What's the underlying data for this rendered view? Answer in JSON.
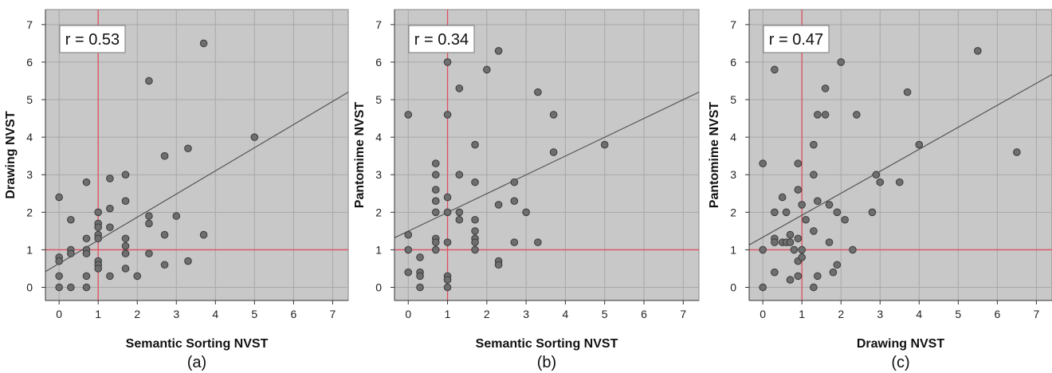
{
  "chart_data": [
    {
      "type": "scatter",
      "caption": "(a)",
      "annotation": "r = 0.53",
      "xlabel": "Semantic Sorting NVST",
      "ylabel": "Drawing NVST",
      "xlim": [
        -0.35,
        7.4
      ],
      "ylim": [
        -0.35,
        7.4
      ],
      "xticks": [
        0,
        1,
        2,
        3,
        4,
        5,
        6,
        7
      ],
      "yticks": [
        0,
        1,
        2,
        3,
        4,
        5,
        6,
        7
      ],
      "grid": true,
      "reference_lines": {
        "x": 1,
        "y": 1
      },
      "fit_line": {
        "x0": -0.35,
        "y0": 0.42,
        "x1": 7.4,
        "y1": 5.2
      },
      "colors": {
        "background": "#c8c8c8",
        "point": "#6e6e6e",
        "reference": "#e05060",
        "fit": "#555555"
      },
      "points": [
        {
          "x": 0,
          "y": 2.4
        },
        {
          "x": 0,
          "y": 0.8
        },
        {
          "x": 0,
          "y": 0.7
        },
        {
          "x": 0,
          "y": 0.3
        },
        {
          "x": 0,
          "y": 0
        },
        {
          "x": 0.3,
          "y": 1.8
        },
        {
          "x": 0.3,
          "y": 1.0
        },
        {
          "x": 0.3,
          "y": 0.9
        },
        {
          "x": 0.3,
          "y": 0
        },
        {
          "x": 0.7,
          "y": 2.8
        },
        {
          "x": 0.7,
          "y": 1.3
        },
        {
          "x": 0.7,
          "y": 1.0
        },
        {
          "x": 0.7,
          "y": 0.9
        },
        {
          "x": 0.7,
          "y": 0.3
        },
        {
          "x": 0.7,
          "y": 0
        },
        {
          "x": 1,
          "y": 2.0
        },
        {
          "x": 1,
          "y": 1.7
        },
        {
          "x": 1,
          "y": 1.6
        },
        {
          "x": 1,
          "y": 1.4
        },
        {
          "x": 1,
          "y": 1.3
        },
        {
          "x": 1,
          "y": 0.7
        },
        {
          "x": 1,
          "y": 0.6
        },
        {
          "x": 1,
          "y": 0.5
        },
        {
          "x": 1.3,
          "y": 2.9
        },
        {
          "x": 1.3,
          "y": 2.1
        },
        {
          "x": 1.3,
          "y": 1.6
        },
        {
          "x": 1.3,
          "y": 0.3
        },
        {
          "x": 1.7,
          "y": 3.0
        },
        {
          "x": 1.7,
          "y": 2.3
        },
        {
          "x": 1.7,
          "y": 1.3
        },
        {
          "x": 1.7,
          "y": 1.1
        },
        {
          "x": 1.7,
          "y": 0.9
        },
        {
          "x": 1.7,
          "y": 0.5
        },
        {
          "x": 2.0,
          "y": 0.3
        },
        {
          "x": 2.3,
          "y": 5.5
        },
        {
          "x": 2.3,
          "y": 1.9
        },
        {
          "x": 2.3,
          "y": 1.7
        },
        {
          "x": 2.3,
          "y": 0.9
        },
        {
          "x": 2.7,
          "y": 3.5
        },
        {
          "x": 2.7,
          "y": 1.4
        },
        {
          "x": 2.7,
          "y": 0.6
        },
        {
          "x": 3.0,
          "y": 1.9
        },
        {
          "x": 3.3,
          "y": 3.7
        },
        {
          "x": 3.3,
          "y": 0.7
        },
        {
          "x": 3.7,
          "y": 6.5
        },
        {
          "x": 3.7,
          "y": 1.4
        },
        {
          "x": 5.0,
          "y": 4.0
        }
      ]
    },
    {
      "type": "scatter",
      "caption": "(b)",
      "annotation": "r = 0.34",
      "xlabel": "Semantic Sorting NVST",
      "ylabel": "Pantomime NVST",
      "xlim": [
        -0.35,
        7.4
      ],
      "ylim": [
        -0.35,
        7.4
      ],
      "xticks": [
        0,
        1,
        2,
        3,
        4,
        5,
        6,
        7
      ],
      "yticks": [
        0,
        1,
        2,
        3,
        4,
        5,
        6,
        7
      ],
      "grid": true,
      "reference_lines": {
        "x": 1,
        "y": 1
      },
      "fit_line": {
        "x0": -0.35,
        "y0": 1.32,
        "x1": 7.4,
        "y1": 5.2
      },
      "colors": {
        "background": "#c8c8c8",
        "point": "#6e6e6e",
        "reference": "#e05060",
        "fit": "#555555"
      },
      "points": [
        {
          "x": 0,
          "y": 4.6
        },
        {
          "x": 0,
          "y": 1.4
        },
        {
          "x": 0,
          "y": 1.0
        },
        {
          "x": 0,
          "y": 0.4
        },
        {
          "x": 0.3,
          "y": 0.8
        },
        {
          "x": 0.3,
          "y": 0.4
        },
        {
          "x": 0.3,
          "y": 0.3
        },
        {
          "x": 0.3,
          "y": 0
        },
        {
          "x": 0.7,
          "y": 3.3
        },
        {
          "x": 0.7,
          "y": 3.0
        },
        {
          "x": 0.7,
          "y": 2.6
        },
        {
          "x": 0.7,
          "y": 2.3
        },
        {
          "x": 0.7,
          "y": 2.0
        },
        {
          "x": 0.7,
          "y": 1.3
        },
        {
          "x": 0.7,
          "y": 1.2
        },
        {
          "x": 0.7,
          "y": 1.0
        },
        {
          "x": 1,
          "y": 6.0
        },
        {
          "x": 1,
          "y": 4.6
        },
        {
          "x": 1,
          "y": 2.4
        },
        {
          "x": 1,
          "y": 2.0
        },
        {
          "x": 1,
          "y": 1.2
        },
        {
          "x": 1,
          "y": 0.3
        },
        {
          "x": 1,
          "y": 0.2
        },
        {
          "x": 1,
          "y": 0
        },
        {
          "x": 1.3,
          "y": 5.3
        },
        {
          "x": 1.3,
          "y": 3.0
        },
        {
          "x": 1.3,
          "y": 2.0
        },
        {
          "x": 1.3,
          "y": 1.8
        },
        {
          "x": 1.7,
          "y": 3.8
        },
        {
          "x": 1.7,
          "y": 2.8
        },
        {
          "x": 1.7,
          "y": 1.8
        },
        {
          "x": 1.7,
          "y": 1.5
        },
        {
          "x": 1.7,
          "y": 1.3
        },
        {
          "x": 1.7,
          "y": 1.2
        },
        {
          "x": 1.7,
          "y": 1.0
        },
        {
          "x": 2.0,
          "y": 5.8
        },
        {
          "x": 2.3,
          "y": 6.3
        },
        {
          "x": 2.3,
          "y": 2.2
        },
        {
          "x": 2.3,
          "y": 0.7
        },
        {
          "x": 2.3,
          "y": 0.6
        },
        {
          "x": 2.7,
          "y": 2.8
        },
        {
          "x": 2.7,
          "y": 2.3
        },
        {
          "x": 2.7,
          "y": 1.2
        },
        {
          "x": 3.0,
          "y": 2.0
        },
        {
          "x": 3.3,
          "y": 5.2
        },
        {
          "x": 3.3,
          "y": 1.2
        },
        {
          "x": 3.7,
          "y": 4.6
        },
        {
          "x": 3.7,
          "y": 3.6
        },
        {
          "x": 5.0,
          "y": 3.8
        }
      ]
    },
    {
      "type": "scatter",
      "caption": "(c)",
      "annotation": "r = 0.47",
      "xlabel": "Drawing NVST",
      "ylabel": "Pantomime NVST",
      "xlim": [
        -0.35,
        7.4
      ],
      "ylim": [
        -0.35,
        7.4
      ],
      "xticks": [
        0,
        1,
        2,
        3,
        4,
        5,
        6,
        7
      ],
      "yticks": [
        0,
        1,
        2,
        3,
        4,
        5,
        6,
        7
      ],
      "grid": true,
      "reference_lines": {
        "x": 1,
        "y": 1
      },
      "fit_line": {
        "x0": -0.35,
        "y0": 1.13,
        "x1": 7.4,
        "y1": 5.67
      },
      "colors": {
        "background": "#c8c8c8",
        "point": "#6e6e6e",
        "reference": "#e05060",
        "fit": "#555555"
      },
      "points": [
        {
          "x": 0,
          "y": 3.3
        },
        {
          "x": 0,
          "y": 1.0
        },
        {
          "x": 0,
          "y": 0
        },
        {
          "x": 0.3,
          "y": 5.8
        },
        {
          "x": 0.3,
          "y": 2.0
        },
        {
          "x": 0.3,
          "y": 1.3
        },
        {
          "x": 0.3,
          "y": 1.2
        },
        {
          "x": 0.3,
          "y": 0.4
        },
        {
          "x": 0.5,
          "y": 2.4
        },
        {
          "x": 0.5,
          "y": 1.2
        },
        {
          "x": 0.6,
          "y": 2.0
        },
        {
          "x": 0.6,
          "y": 1.2
        },
        {
          "x": 0.7,
          "y": 1.4
        },
        {
          "x": 0.7,
          "y": 1.2
        },
        {
          "x": 0.7,
          "y": 0.2
        },
        {
          "x": 0.8,
          "y": 1.0
        },
        {
          "x": 0.9,
          "y": 3.3
        },
        {
          "x": 0.9,
          "y": 2.6
        },
        {
          "x": 0.9,
          "y": 1.3
        },
        {
          "x": 0.9,
          "y": 0.7
        },
        {
          "x": 0.9,
          "y": 0.3
        },
        {
          "x": 1.0,
          "y": 2.2
        },
        {
          "x": 1.0,
          "y": 1.0
        },
        {
          "x": 1.0,
          "y": 0.8
        },
        {
          "x": 1.1,
          "y": 1.8
        },
        {
          "x": 1.3,
          "y": 3.8
        },
        {
          "x": 1.3,
          "y": 3.0
        },
        {
          "x": 1.3,
          "y": 1.5
        },
        {
          "x": 1.3,
          "y": 0
        },
        {
          "x": 1.4,
          "y": 4.6
        },
        {
          "x": 1.4,
          "y": 2.3
        },
        {
          "x": 1.4,
          "y": 0.3
        },
        {
          "x": 1.6,
          "y": 5.3
        },
        {
          "x": 1.6,
          "y": 4.6
        },
        {
          "x": 1.7,
          "y": 2.2
        },
        {
          "x": 1.7,
          "y": 1.2
        },
        {
          "x": 1.8,
          "y": 0.4
        },
        {
          "x": 1.9,
          "y": 2.0
        },
        {
          "x": 1.9,
          "y": 0.6
        },
        {
          "x": 2.0,
          "y": 6.0
        },
        {
          "x": 2.1,
          "y": 1.8
        },
        {
          "x": 2.3,
          "y": 1.0
        },
        {
          "x": 2.4,
          "y": 4.6
        },
        {
          "x": 2.8,
          "y": 2.0
        },
        {
          "x": 2.9,
          "y": 3.0
        },
        {
          "x": 3.0,
          "y": 2.8
        },
        {
          "x": 3.5,
          "y": 2.8
        },
        {
          "x": 3.7,
          "y": 5.2
        },
        {
          "x": 4.0,
          "y": 3.8
        },
        {
          "x": 5.5,
          "y": 6.3
        },
        {
          "x": 6.5,
          "y": 3.6
        }
      ]
    }
  ]
}
